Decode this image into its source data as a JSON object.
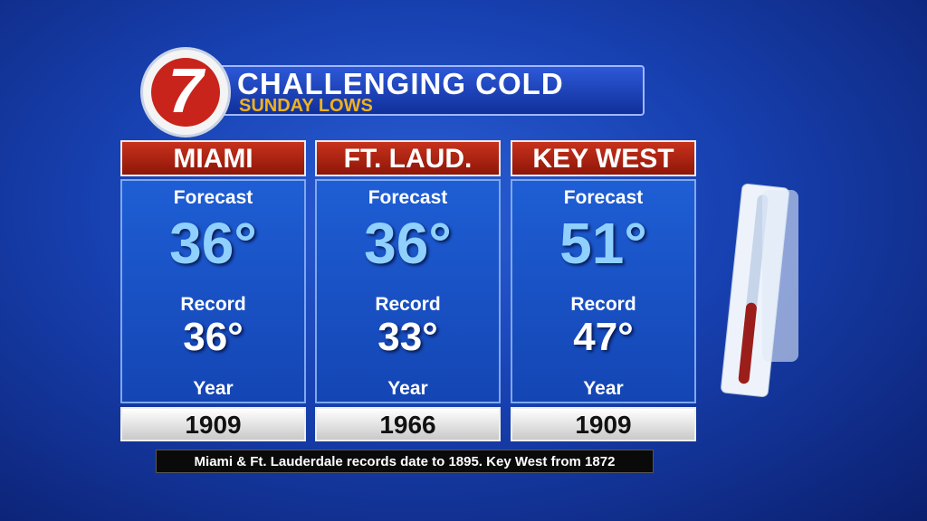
{
  "header": {
    "logo": "7",
    "title": "CHALLENGING COLD",
    "subtitle": "SUNDAY LOWS"
  },
  "cities": [
    {
      "name": "MIAMI",
      "forecast_label": "Forecast",
      "forecast": "36°",
      "record_label": "Record",
      "record": "36°",
      "year_label": "Year",
      "year": "1909"
    },
    {
      "name": "FT. LAUD.",
      "forecast_label": "Forecast",
      "forecast": "36°",
      "record_label": "Record",
      "record": "33°",
      "year_label": "Year",
      "year": "1966"
    },
    {
      "name": "KEY WEST",
      "forecast_label": "Forecast",
      "forecast": "51°",
      "record_label": "Record",
      "record": "47°",
      "year_label": "Year",
      "year": "1909"
    }
  ],
  "footer": {
    "note": "Miami & Ft. Lauderdale records date to 1895. Key West from 1872"
  }
}
